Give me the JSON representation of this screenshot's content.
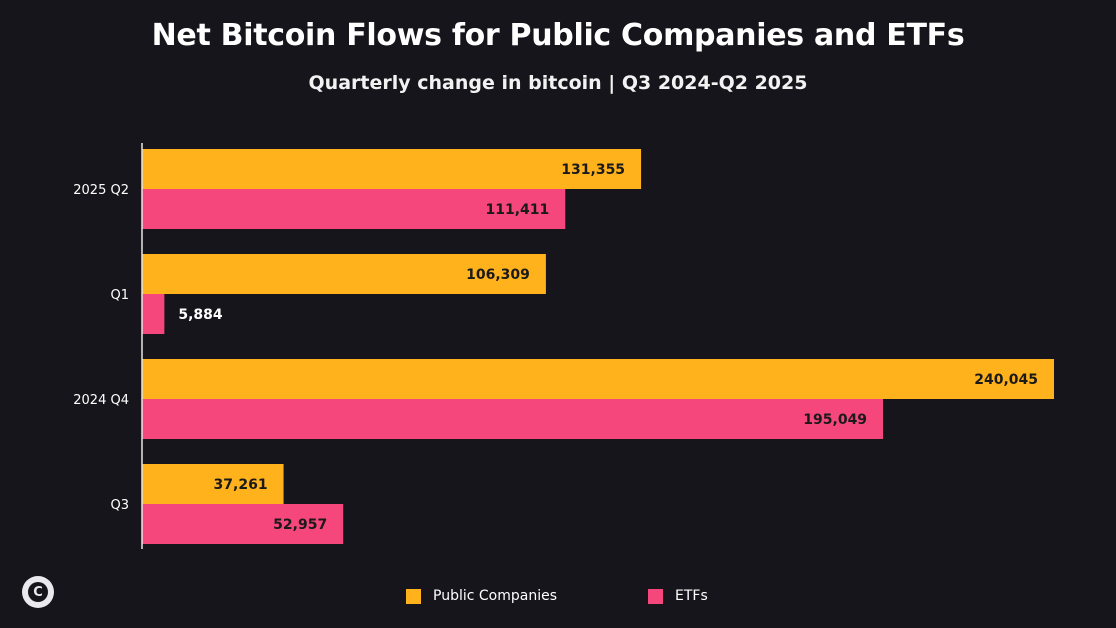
{
  "chart_data": {
    "type": "bar",
    "orientation": "horizontal",
    "title": "Net Bitcoin Flows for Public Companies and ETFs",
    "subtitle": "Quarterly change in bitcoin | Q3 2024-Q2 2025",
    "categories": [
      "2025 Q2",
      "Q1",
      "2024 Q4",
      "Q3"
    ],
    "series": [
      {
        "name": "Public Companies",
        "color": "#ffb21c",
        "values": [
          131355,
          106309,
          240045,
          37261
        ]
      },
      {
        "name": "ETFs",
        "color": "#f5477c",
        "values": [
          111411,
          5884,
          195049,
          52957
        ]
      }
    ],
    "data_labels": [
      [
        "131,355",
        "111,411"
      ],
      [
        "106,309",
        "5,884"
      ],
      [
        "240,045",
        "195,049"
      ],
      [
        "37,261",
        "52,957"
      ]
    ],
    "xlabel": "",
    "ylabel": "",
    "xlim": [
      0,
      240045
    ],
    "grid": false,
    "legend_position": "bottom"
  },
  "legend": {
    "items": [
      {
        "label": "Public Companies",
        "color": "#ffb21c"
      },
      {
        "label": "ETFs",
        "color": "#f5477c"
      }
    ]
  },
  "logo": {
    "icon": "coindesk-c-icon",
    "text": "C"
  }
}
